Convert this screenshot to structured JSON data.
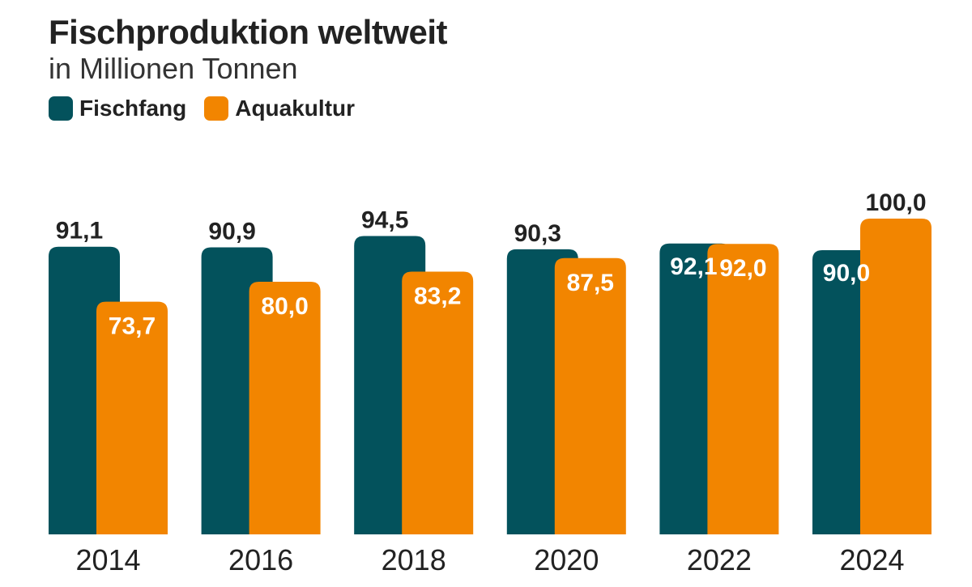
{
  "title": "Fischproduktion weltweit",
  "subtitle": "in Millionen Tonnen",
  "colors": {
    "Fischfang": "#03525C",
    "Aquakultur": "#F28500"
  },
  "chart_data": {
    "type": "bar",
    "title": "Fischproduktion weltweit",
    "subtitle": "in Millionen Tonnen",
    "categories": [
      "2014",
      "2016",
      "2018",
      "2020",
      "2022",
      "2024"
    ],
    "series": [
      {
        "name": "Fischfang",
        "values": [
          91.1,
          90.9,
          94.5,
          90.3,
          92.1,
          90.0
        ],
        "labels": [
          "91,1",
          "90,9",
          "94,5",
          "90,3",
          "92,1",
          "90,0"
        ]
      },
      {
        "name": "Aquakultur",
        "values": [
          73.7,
          80.0,
          83.2,
          87.5,
          92.0,
          100.0
        ],
        "labels": [
          "73,7",
          "80,0",
          "83,2",
          "87,5",
          "92,0",
          "100,0"
        ]
      }
    ],
    "ylim": [
      0,
      100
    ],
    "grid": false,
    "legend": "top-left"
  }
}
